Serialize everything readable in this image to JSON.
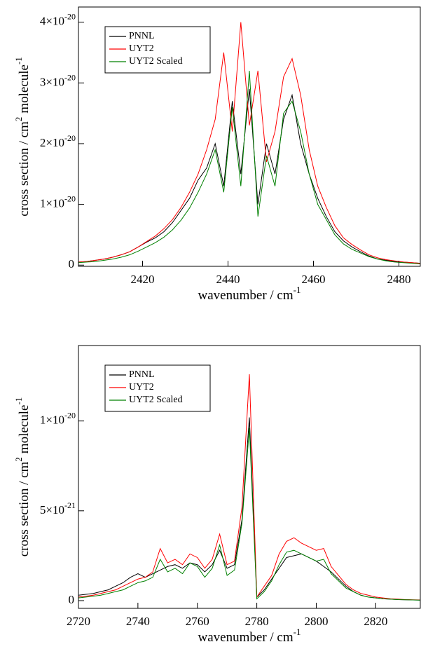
{
  "chart_data": [
    {
      "type": "line",
      "legend": "upper left",
      "xlabel": {
        "text": "wavenumber / cm",
        "sup": "-1"
      },
      "ylabel": {
        "text": "cross section / cm",
        "sup": "2",
        "text2": "molecule",
        "sup2": "-1"
      },
      "xlim": [
        2405,
        2485
      ],
      "ylim": [
        -2e-22,
        4.25e-20
      ],
      "xticks": [
        2420,
        2440,
        2460,
        2480
      ],
      "yticks": [
        0,
        {
          "value": 1e-20,
          "label": "1×10",
          "exponent": "-20"
        },
        {
          "value": 2e-20,
          "label": "2×10",
          "exponent": "-20"
        },
        {
          "value": 3e-20,
          "label": "3×10",
          "exponent": "-20"
        },
        {
          "value": 4e-20,
          "label": "4×10",
          "exponent": "-20"
        }
      ],
      "x": [
        2405,
        2407,
        2409,
        2411,
        2413,
        2415,
        2417,
        2419,
        2421,
        2423,
        2425,
        2427,
        2429,
        2431,
        2433,
        2435,
        2437,
        2439,
        2441,
        2443,
        2445,
        2447,
        2449,
        2451,
        2453,
        2455,
        2457,
        2459,
        2461,
        2463,
        2465,
        2467,
        2469,
        2471,
        2473,
        2475,
        2477,
        2479,
        2481,
        2483,
        2485
      ],
      "series": [
        {
          "name": "PNNL",
          "color": "#000000",
          "values": [
            5e-22,
            6e-22,
            8e-22,
            1e-21,
            1.3e-21,
            1.7e-21,
            2.2e-21,
            3e-21,
            3.8e-21,
            4.5e-21,
            5.5e-21,
            7e-21,
            9e-21,
            1.1e-20,
            1.4e-20,
            1.6e-20,
            2e-20,
            1.3e-20,
            2.7e-20,
            1.5e-20,
            2.9e-20,
            1e-20,
            2e-20,
            1.5e-20,
            2.4e-20,
            2.8e-20,
            2e-20,
            1.5e-20,
            1.1e-20,
            8e-21,
            5.5e-21,
            4e-21,
            3e-21,
            2.2e-21,
            1.5e-21,
            1e-21,
            8e-22,
            6e-22,
            5e-22,
            4e-22,
            3e-22
          ]
        },
        {
          "name": "UYT2",
          "color": "#ff0000",
          "values": [
            5e-22,
            6e-22,
            8e-22,
            1e-21,
            1.3e-21,
            1.7e-21,
            2.2e-21,
            3e-21,
            3.9e-21,
            4.8e-21,
            6e-21,
            7.5e-21,
            9.5e-21,
            1.2e-20,
            1.5e-20,
            1.9e-20,
            2.4e-20,
            3.5e-20,
            2.2e-20,
            4e-20,
            2.3e-20,
            3.2e-20,
            1.7e-20,
            2.2e-20,
            3.1e-20,
            3.4e-20,
            2.8e-20,
            1.9e-20,
            1.3e-20,
            9.5e-21,
            6.5e-21,
            4.5e-21,
            3.4e-21,
            2.5e-21,
            1.7e-21,
            1.2e-21,
            9e-22,
            7e-22,
            5e-22,
            4e-22,
            3e-22
          ]
        },
        {
          "name": "UYT2 Scaled",
          "color": "#008000",
          "values": [
            4e-22,
            5e-22,
            6e-22,
            8e-22,
            1e-21,
            1.3e-21,
            1.7e-21,
            2.3e-21,
            3e-21,
            3.7e-21,
            4.6e-21,
            5.8e-21,
            7.4e-21,
            9.4e-21,
            1.2e-20,
            1.5e-20,
            1.9e-20,
            1.2e-20,
            2.6e-20,
            1.3e-20,
            3.2e-20,
            8e-21,
            1.8e-20,
            1.3e-20,
            2.5e-20,
            2.7e-20,
            2.2e-20,
            1.5e-20,
            1e-20,
            7.5e-21,
            5e-21,
            3.5e-21,
            2.6e-21,
            2e-21,
            1.4e-21,
            1e-21,
            7e-22,
            5e-22,
            4e-22,
            3e-22,
            2e-22
          ]
        }
      ]
    },
    {
      "type": "line",
      "legend": "upper left",
      "xlabel": {
        "text": "wavenumber / cm",
        "sup": "-1"
      },
      "ylabel": {
        "text": "cross section / cm",
        "sup": "2",
        "text2": "molecule",
        "sup2": "-1"
      },
      "xlim": [
        2720,
        2835
      ],
      "ylim": [
        -4.3e-22,
        1.42e-20
      ],
      "xticks": [
        2720,
        2740,
        2760,
        2780,
        2800,
        2820
      ],
      "yticks": [
        0,
        {
          "value": 5e-21,
          "label": "5×10",
          "exponent": "-21"
        },
        {
          "value": 1e-20,
          "label": "1×10",
          "exponent": "-20"
        }
      ],
      "x": [
        2720,
        2722.5,
        2725,
        2727.5,
        2730,
        2732.5,
        2735,
        2737.5,
        2740,
        2742.5,
        2745,
        2747.5,
        2750,
        2752.5,
        2755,
        2757.5,
        2760,
        2762.5,
        2765,
        2767.5,
        2770,
        2772.5,
        2775,
        2777.5,
        2780,
        2782.5,
        2785,
        2787.5,
        2790,
        2792.5,
        2795,
        2797.5,
        2800,
        2802.5,
        2805,
        2807.5,
        2810,
        2812.5,
        2815,
        2817.5,
        2820,
        2822.5,
        2825,
        2827.5,
        2830,
        2832.5,
        2835
      ],
      "series": [
        {
          "name": "PNNL",
          "color": "#000000",
          "values": [
            3e-22,
            3.5e-22,
            4e-22,
            5e-22,
            6e-22,
            8e-22,
            1e-21,
            1.3e-21,
            1.5e-21,
            1.3e-21,
            1.5e-21,
            1.7e-21,
            1.9e-21,
            2e-21,
            1.8e-21,
            2.1e-21,
            2e-21,
            1.6e-21,
            2e-21,
            2.8e-21,
            1.8e-21,
            2e-21,
            4.5e-21,
            1.02e-20,
            2e-22,
            6e-22,
            1.2e-21,
            1.8e-21,
            2.4e-21,
            2.5e-21,
            2.6e-21,
            2.4e-21,
            2.2e-21,
            1.9e-21,
            1.6e-21,
            1.2e-21,
            8e-22,
            5e-22,
            3e-22,
            2e-22,
            1.5e-22,
            1e-22,
            8e-23,
            6e-23,
            5e-23,
            4e-23,
            3e-23
          ]
        },
        {
          "name": "UYT2",
          "color": "#ff0000",
          "values": [
            2e-22,
            2.5e-22,
            3e-22,
            4e-22,
            5e-22,
            6e-22,
            8e-22,
            1e-21,
            1.2e-21,
            1.3e-21,
            1.6e-21,
            2.9e-21,
            2.1e-21,
            2.3e-21,
            2e-21,
            2.6e-21,
            2.4e-21,
            1.8e-21,
            2.3e-21,
            3.7e-21,
            2e-21,
            2.2e-21,
            5.2e-21,
            1.26e-20,
            2e-22,
            8e-22,
            1.4e-21,
            2.6e-21,
            3.3e-21,
            3.5e-21,
            3.2e-21,
            3e-21,
            2.8e-21,
            2.9e-21,
            1.9e-21,
            1.4e-21,
            9e-22,
            6e-22,
            4e-22,
            3e-22,
            2e-22,
            1.5e-22,
            1e-22,
            8e-23,
            6e-23,
            5e-23,
            4e-23
          ]
        },
        {
          "name": "UYT2 Scaled",
          "color": "#008000",
          "values": [
            1.5e-22,
            2e-22,
            2.5e-22,
            3e-22,
            4e-22,
            5e-22,
            6e-22,
            8e-22,
            1e-21,
            1.1e-21,
            1.3e-21,
            2.3e-21,
            1.6e-21,
            1.8e-21,
            1.5e-21,
            2.1e-21,
            1.9e-21,
            1.3e-21,
            1.8e-21,
            3.1e-21,
            1.4e-21,
            1.7e-21,
            4.3e-21,
            9.6e-21,
            1e-22,
            5e-22,
            1.1e-21,
            2e-21,
            2.7e-21,
            2.8e-21,
            2.6e-21,
            2.4e-21,
            2.2e-21,
            2.3e-21,
            1.5e-21,
            1.1e-21,
            7e-22,
            5e-22,
            3e-22,
            2e-22,
            1.5e-22,
            1e-22,
            8e-23,
            6e-23,
            5e-23,
            4e-23,
            3e-23
          ]
        }
      ]
    }
  ]
}
